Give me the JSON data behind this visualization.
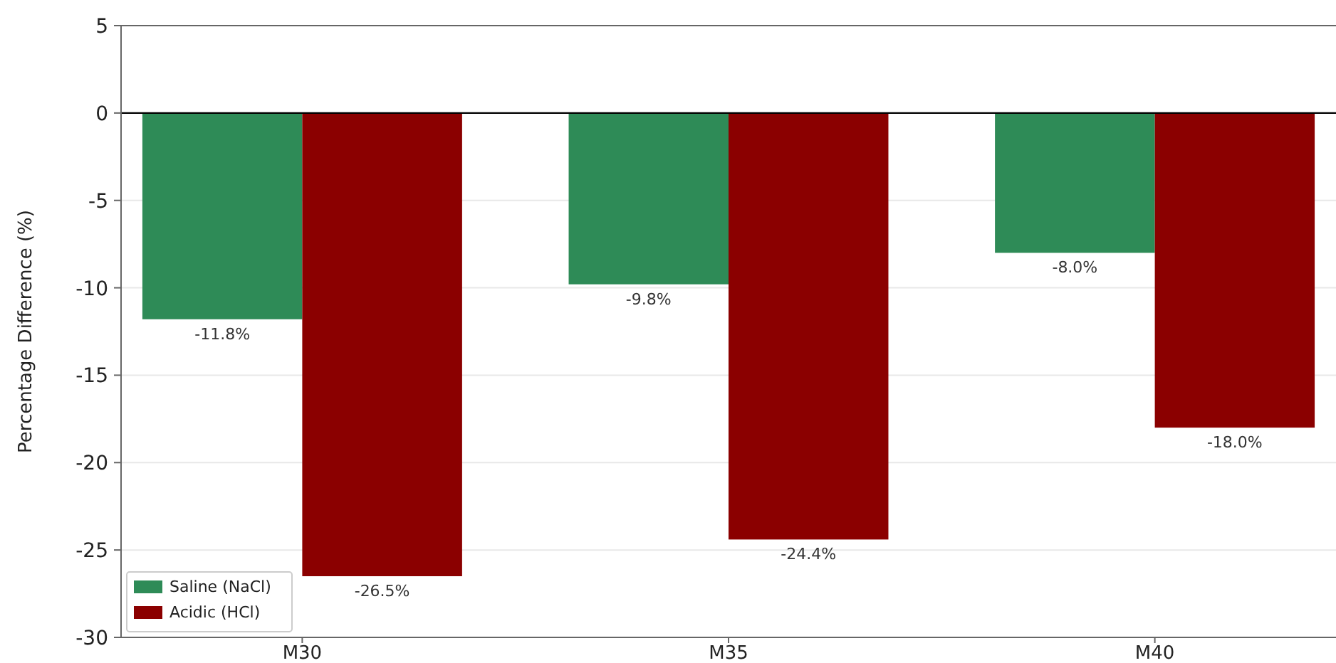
{
  "chart_data": {
    "type": "bar",
    "ylabel": "Percentage Difference (%)",
    "categories": [
      "M30",
      "M35",
      "M40"
    ],
    "series": [
      {
        "name": "Saline (NaCl)",
        "color": "#2e8b57",
        "values": [
          -11.8,
          -9.8,
          -8.0
        ],
        "value_labels": [
          "-11.8%",
          "-9.8%",
          "-8.0%"
        ]
      },
      {
        "name": "Acidic (HCl)",
        "color": "#8b0000",
        "values": [
          -26.5,
          -24.4,
          -18.0
        ],
        "value_labels": [
          "-26.5%",
          "-24.4%",
          "-18.0%"
        ]
      }
    ],
    "ylim": [
      -30,
      5
    ],
    "yticks": [
      -30,
      -25,
      -20,
      -15,
      -10,
      -5,
      0,
      5
    ],
    "grid": "y",
    "ref_lines": [
      {
        "axis": "y",
        "value": 0,
        "color": "#000000"
      }
    ],
    "legend": "bottom left"
  }
}
